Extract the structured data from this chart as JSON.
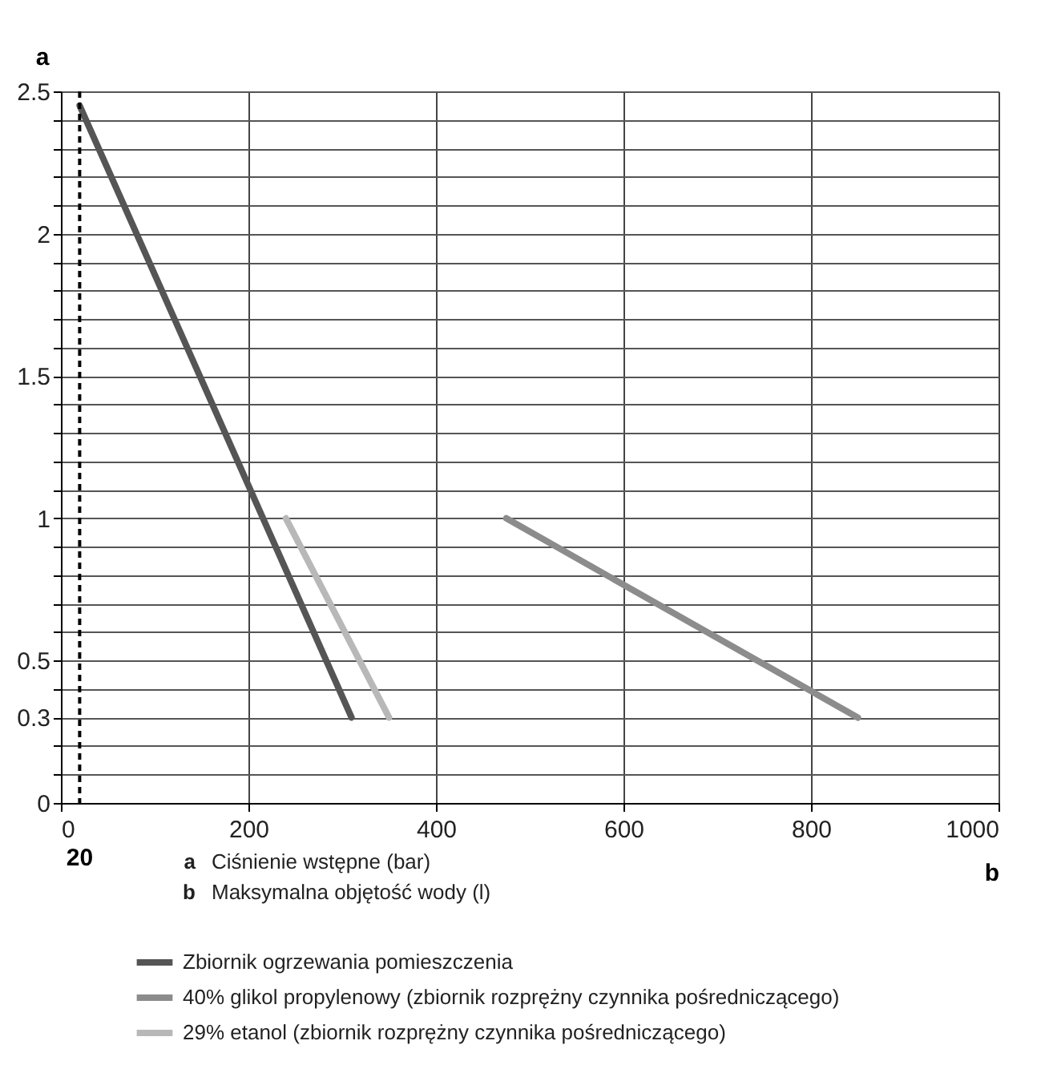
{
  "chart_data": {
    "type": "line",
    "xlabel": "b",
    "ylabel": "a",
    "annotations": [
      "Ciśnienie wstępne (bar)",
      "Maksymalna objętość wody (l)"
    ],
    "series": [
      {
        "name": "Zbiornik ogrzewania pomieszczenia",
        "color": "#555555",
        "x": [
          20,
          310
        ],
        "values": [
          2.45,
          0.3
        ]
      },
      {
        "name": "40% glikol propylenowy (zbiornik rozprężny czynnika pośredniczącego)",
        "color": "#8c8c8c",
        "x": [
          475,
          850
        ],
        "values": [
          1,
          0.3
        ]
      },
      {
        "name": "29% etanol (zbiornik rozprężny czynnika pośredniczącego)",
        "color": "#b8b8b8",
        "x": [
          240,
          350
        ],
        "values": [
          1,
          0.3
        ]
      }
    ],
    "xlim": [
      0,
      1000
    ],
    "xticks": [
      0,
      200,
      400,
      600,
      800,
      1000
    ],
    "ylim": [
      0,
      2.5
    ],
    "yticks": [
      0,
      {
        "value": 0.1,
        "label": null
      },
      {
        "value": 0.2,
        "label": null
      },
      0.3,
      {
        "value": 0.4,
        "label": null
      },
      0.5,
      {
        "value": 0.6,
        "label": null
      },
      {
        "value": 0.7,
        "label": null
      },
      {
        "value": 0.8,
        "label": null
      },
      {
        "value": 0.9,
        "label": null
      },
      1,
      {
        "value": 1.1,
        "label": null
      },
      {
        "value": 1.2,
        "label": null
      },
      {
        "value": 1.3,
        "label": null
      },
      {
        "value": 1.4,
        "label": null
      },
      1.5,
      {
        "value": 1.6,
        "label": null
      },
      {
        "value": 1.7,
        "label": null
      },
      {
        "value": 1.8,
        "label": null
      },
      {
        "value": 1.9,
        "label": null
      },
      2,
      {
        "value": 2.1,
        "label": null
      },
      {
        "value": 2.2,
        "label": null
      },
      {
        "value": 2.3,
        "label": null
      },
      {
        "value": 2.4,
        "label": null
      },
      2.5
    ],
    "ref_lines": [
      {
        "axis": "x",
        "value": 20,
        "label": "20",
        "line_style": "dashed",
        "color": "#000000"
      }
    ],
    "grid": true,
    "legend": "bottom",
    "marker": "none",
    "line_style": "solid"
  }
}
